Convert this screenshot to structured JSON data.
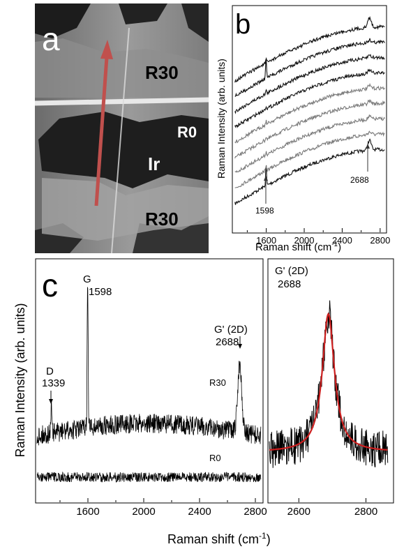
{
  "panel_a": {
    "letter": "a",
    "regions": [
      "R30",
      "R0",
      "Ir",
      "R30"
    ],
    "arrow_color": "#c0504d"
  },
  "chart_data": [
    {
      "id": "b",
      "type": "line",
      "letter": "b",
      "xlabel": "Raman shift (cm",
      "xlabel_sup": "-1",
      "xlabel_tail": ")",
      "ylabel": "Raman Intensity (arb. units)",
      "xlim": [
        1250,
        2860
      ],
      "xticks": [
        1600,
        2000,
        2400,
        2800
      ],
      "xtick_labels": [
        "1600",
        "2000",
        "2400",
        "2800"
      ],
      "n_spectra": 9,
      "spectra_colors": [
        "#111111",
        "#7a7a7a",
        "#7a7a7a",
        "#7a7a7a",
        "#7a7a7a",
        "#111111",
        "#111111",
        "#111111",
        "#111111"
      ],
      "peaks": [
        1598,
        2688
      ],
      "annotations": [
        {
          "text": "1598",
          "x": 1598
        },
        {
          "text": "2688",
          "x": 2688
        }
      ]
    },
    {
      "id": "c-left",
      "type": "line",
      "letter": "c",
      "xlabel": "Raman shift (cm",
      "xlabel_sup": "-1",
      "xlabel_tail": ")",
      "ylabel": "Raman Intensity (arb. units)",
      "xlim": [
        1230,
        2850
      ],
      "xticks": [
        1600,
        2000,
        2400,
        2800
      ],
      "xtick_labels": [
        "1600",
        "2000",
        "2400",
        "2800"
      ],
      "series": [
        {
          "name": "R30",
          "peaks": [
            1339,
            1598,
            2688
          ]
        },
        {
          "name": "R0",
          "peaks": []
        }
      ],
      "annotations": [
        {
          "text": "D",
          "value": "1339",
          "x": 1339
        },
        {
          "text": "G",
          "value": "1598",
          "x": 1598
        },
        {
          "text": "G' (2D)",
          "value": "2688",
          "x": 2688
        }
      ]
    },
    {
      "id": "c-right",
      "type": "line",
      "xlim": [
        2510,
        2880
      ],
      "xticks": [
        2600,
        2800
      ],
      "xtick_labels": [
        "2600",
        "2800"
      ],
      "peak_center": 2688,
      "fit_color": "#cc1f1f",
      "annotation": {
        "text": "G' (2D)",
        "value": "2688"
      }
    }
  ]
}
